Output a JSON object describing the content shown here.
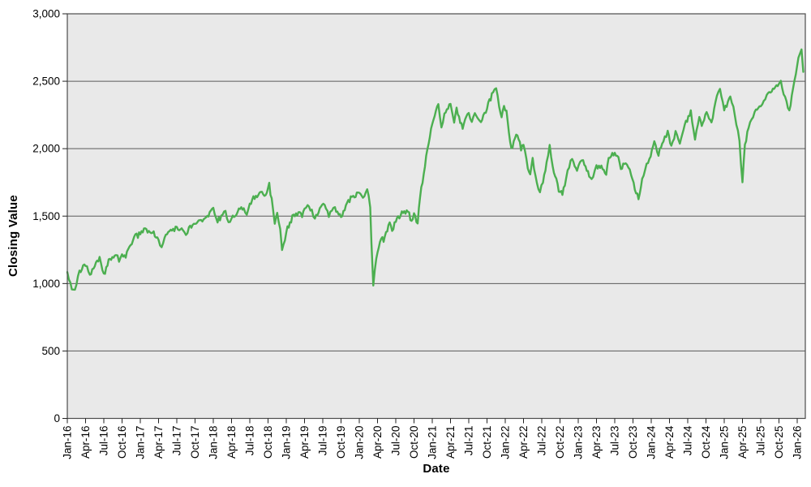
{
  "chart_data": {
    "type": "line",
    "title": "",
    "xlabel": "Date",
    "ylabel": "Closing Value",
    "legend": "none",
    "grid": "horizontal",
    "x_axis": {
      "unit": "months since Jan-2016",
      "range_months": [
        0,
        121
      ],
      "tick_every_months": 3,
      "tick_labels": [
        "Jan-16",
        "Apr-16",
        "Jul-16",
        "Oct-16",
        "Jan-17",
        "Apr-17",
        "Jul-17",
        "Oct-17",
        "Jan-18",
        "Apr-18",
        "Jul-18",
        "Oct-18",
        "Jan-19",
        "Apr-19",
        "Jul-19",
        "Oct-19",
        "Jan-20",
        "Apr-20",
        "Jul-20",
        "Oct-20",
        "Jan-21",
        "Apr-21",
        "Jul-21",
        "Oct-21",
        "Jan-22",
        "Apr-22",
        "Jul-22",
        "Oct-22",
        "Jan-23",
        "Apr-23",
        "Jul-23",
        "Oct-23",
        "Jan-24",
        "Apr-24",
        "Jul-24",
        "Oct-24",
        "Jan-25",
        "Apr-25",
        "Jul-25",
        "Oct-25",
        "Jan-26"
      ]
    },
    "y_axis": {
      "range": [
        0,
        3000
      ],
      "tick_values": [
        0,
        500,
        1000,
        1500,
        2000,
        2500,
        3000
      ],
      "tick_labels": [
        "0",
        "500",
        "1,000",
        "1,500",
        "2,000",
        "2,500",
        "3,000"
      ]
    },
    "series": [
      {
        "name": "Closing Value",
        "color": "#4caf50",
        "stroke_width": 2.4,
        "volatility_band": 22,
        "points": [
          [
            0,
            1080
          ],
          [
            0.5,
            1005
          ],
          [
            1,
            950
          ],
          [
            1.5,
            1000
          ],
          [
            2,
            1090
          ],
          [
            3,
            1130
          ],
          [
            3.7,
            1060
          ],
          [
            4.5,
            1125
          ],
          [
            5.3,
            1190
          ],
          [
            6,
            1075
          ],
          [
            6.6,
            1130
          ],
          [
            7,
            1190
          ],
          [
            8,
            1215
          ],
          [
            8.5,
            1165
          ],
          [
            9,
            1220
          ],
          [
            9.6,
            1185
          ],
          [
            10,
            1250
          ],
          [
            11,
            1345
          ],
          [
            12,
            1370
          ],
          [
            13,
            1400
          ],
          [
            14,
            1380
          ],
          [
            15,
            1330
          ],
          [
            15.5,
            1275
          ],
          [
            16,
            1340
          ],
          [
            17,
            1395
          ],
          [
            18,
            1420
          ],
          [
            19,
            1390
          ],
          [
            19.5,
            1360
          ],
          [
            20,
            1420
          ],
          [
            21,
            1445
          ],
          [
            22,
            1475
          ],
          [
            23,
            1500
          ],
          [
            24,
            1560
          ],
          [
            24.7,
            1450
          ],
          [
            25.3,
            1510
          ],
          [
            26,
            1535
          ],
          [
            26.5,
            1455
          ],
          [
            27,
            1480
          ],
          [
            28,
            1530
          ],
          [
            29,
            1555
          ],
          [
            29.5,
            1515
          ],
          [
            30,
            1590
          ],
          [
            31,
            1650
          ],
          [
            32,
            1685
          ],
          [
            32.6,
            1650
          ],
          [
            33.2,
            1740
          ],
          [
            33.8,
            1555
          ],
          [
            34.1,
            1445
          ],
          [
            34.5,
            1525
          ],
          [
            35,
            1405
          ],
          [
            35.3,
            1255
          ],
          [
            36,
            1380
          ],
          [
            36.6,
            1450
          ],
          [
            37.2,
            1510
          ],
          [
            38,
            1530
          ],
          [
            38.6,
            1490
          ],
          [
            39,
            1555
          ],
          [
            39.5,
            1575
          ],
          [
            40.2,
            1540
          ],
          [
            40.7,
            1480
          ],
          [
            41.5,
            1555
          ],
          [
            42.3,
            1585
          ],
          [
            43,
            1490
          ],
          [
            43.5,
            1545
          ],
          [
            44,
            1560
          ],
          [
            44.6,
            1515
          ],
          [
            45,
            1490
          ],
          [
            46,
            1600
          ],
          [
            47,
            1650
          ],
          [
            48,
            1680
          ],
          [
            48.6,
            1635
          ],
          [
            49.3,
            1700
          ],
          [
            49.8,
            1560
          ],
          [
            50,
            1300
          ],
          [
            50.3,
            985
          ],
          [
            50.8,
            1180
          ],
          [
            51.2,
            1260
          ],
          [
            51.6,
            1330
          ],
          [
            52,
            1315
          ],
          [
            53,
            1450
          ],
          [
            53.4,
            1390
          ],
          [
            54,
            1455
          ],
          [
            55,
            1530
          ],
          [
            56,
            1540
          ],
          [
            56.6,
            1460
          ],
          [
            57,
            1520
          ],
          [
            57.6,
            1450
          ],
          [
            58,
            1640
          ],
          [
            59,
            1950
          ],
          [
            60,
            2180
          ],
          [
            61,
            2330
          ],
          [
            61.5,
            2160
          ],
          [
            62,
            2255
          ],
          [
            63,
            2330
          ],
          [
            63.6,
            2195
          ],
          [
            64,
            2300
          ],
          [
            65,
            2150
          ],
          [
            66,
            2270
          ],
          [
            66.5,
            2205
          ],
          [
            67,
            2270
          ],
          [
            68,
            2190
          ],
          [
            69,
            2300
          ],
          [
            70,
            2420
          ],
          [
            70.5,
            2450
          ],
          [
            71,
            2310
          ],
          [
            71.4,
            2235
          ],
          [
            71.8,
            2320
          ],
          [
            72.2,
            2280
          ],
          [
            72.8,
            2050
          ],
          [
            73.2,
            2000
          ],
          [
            73.6,
            2080
          ],
          [
            74,
            2105
          ],
          [
            74.6,
            1990
          ],
          [
            75,
            2030
          ],
          [
            75.7,
            1850
          ],
          [
            76.1,
            1805
          ],
          [
            76.5,
            1935
          ],
          [
            77.2,
            1740
          ],
          [
            77.7,
            1670
          ],
          [
            78.2,
            1755
          ],
          [
            78.8,
            1905
          ],
          [
            79.3,
            2030
          ],
          [
            79.8,
            1870
          ],
          [
            80.2,
            1800
          ],
          [
            80.8,
            1680
          ],
          [
            81.4,
            1665
          ],
          [
            82,
            1780
          ],
          [
            82.5,
            1860
          ],
          [
            83,
            1930
          ],
          [
            83.4,
            1870
          ],
          [
            83.8,
            1830
          ],
          [
            84.3,
            1900
          ],
          [
            84.8,
            1920
          ],
          [
            85.2,
            1870
          ],
          [
            85.8,
            1790
          ],
          [
            86.2,
            1770
          ],
          [
            86.7,
            1840
          ],
          [
            87,
            1870
          ],
          [
            88,
            1850
          ],
          [
            88.6,
            1800
          ],
          [
            89,
            1930
          ],
          [
            90,
            1975
          ],
          [
            90.6,
            1940
          ],
          [
            91,
            1850
          ],
          [
            91.6,
            1880
          ],
          [
            92,
            1890
          ],
          [
            92.7,
            1800
          ],
          [
            93.3,
            1700
          ],
          [
            93.9,
            1630
          ],
          [
            94.5,
            1780
          ],
          [
            95,
            1850
          ],
          [
            95.7,
            1930
          ],
          [
            96.5,
            2060
          ],
          [
            97.2,
            1955
          ],
          [
            98,
            2060
          ],
          [
            98.7,
            2125
          ],
          [
            99.3,
            2015
          ],
          [
            100,
            2125
          ],
          [
            100.7,
            2035
          ],
          [
            101.5,
            2180
          ],
          [
            102.5,
            2280
          ],
          [
            103.2,
            2060
          ],
          [
            103.9,
            2240
          ],
          [
            104.3,
            2165
          ],
          [
            105.1,
            2270
          ],
          [
            105.9,
            2195
          ],
          [
            106.8,
            2400
          ],
          [
            107.3,
            2440
          ],
          [
            108,
            2290
          ],
          [
            108.6,
            2350
          ],
          [
            109,
            2390
          ],
          [
            109.5,
            2310
          ],
          [
            110,
            2180
          ],
          [
            110.5,
            2060
          ],
          [
            111,
            1745
          ],
          [
            111.4,
            2030
          ],
          [
            112,
            2160
          ],
          [
            112.5,
            2220
          ],
          [
            113,
            2265
          ],
          [
            114,
            2310
          ],
          [
            114.5,
            2360
          ],
          [
            115,
            2400
          ],
          [
            116,
            2450
          ],
          [
            117,
            2480
          ],
          [
            117.3,
            2510
          ],
          [
            118,
            2380
          ],
          [
            118.7,
            2280
          ],
          [
            119.3,
            2450
          ],
          [
            120,
            2620
          ],
          [
            120.4,
            2700
          ],
          [
            120.7,
            2735
          ],
          [
            121,
            2570
          ]
        ]
      }
    ],
    "colors": {
      "plot_background": "#e9e9e9",
      "page_background": "#ffffff",
      "gridline": "#5a5a5a",
      "plot_border": "#4c4c4c",
      "tick": "#222222",
      "text": "#000000",
      "line": "#4caf50"
    }
  }
}
